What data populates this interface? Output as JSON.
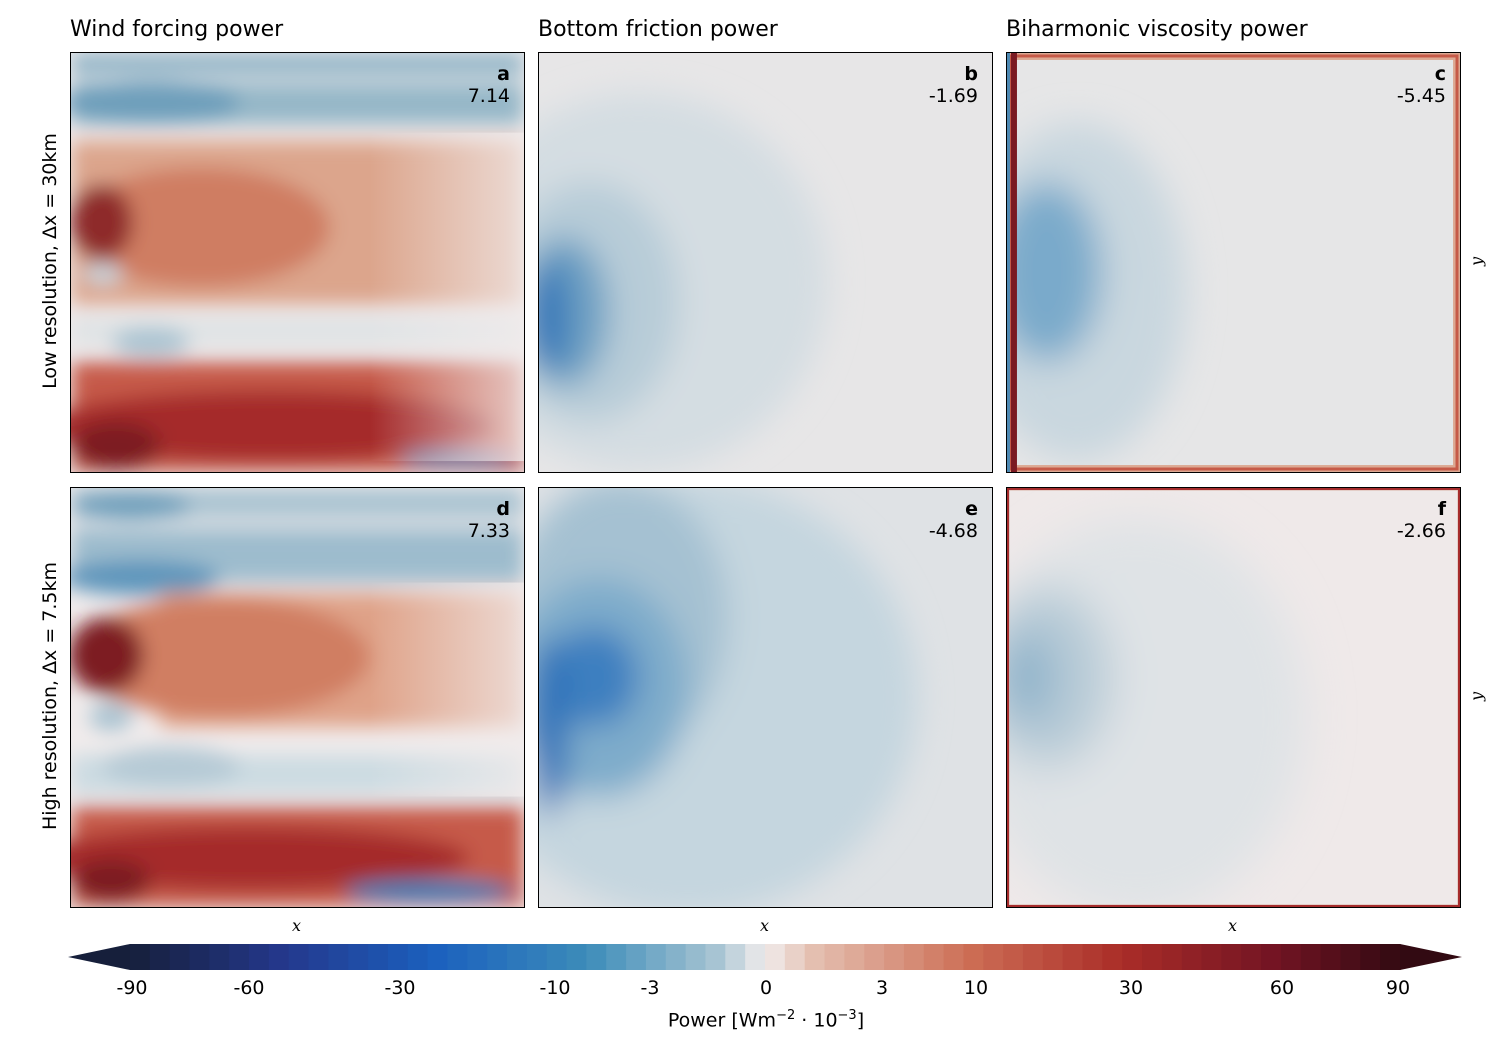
{
  "chart_data": {
    "type": "heatmap",
    "columns": [
      "Wind forcing power",
      "Bottom friction power",
      "Biharmonic viscosity power"
    ],
    "rows": [
      "Low resolution, Δx = 30km",
      "High resolution, Δx = 7.5km"
    ],
    "xlabel": "x",
    "ylabel": "y",
    "panels": [
      {
        "id": "a",
        "row": 0,
        "col": 0,
        "title": "Wind forcing power",
        "value": "7.14"
      },
      {
        "id": "b",
        "row": 0,
        "col": 1,
        "title": "Bottom friction power",
        "value": "-1.69"
      },
      {
        "id": "c",
        "row": 0,
        "col": 2,
        "title": "Biharmonic viscosity power",
        "value": "-5.45"
      },
      {
        "id": "d",
        "row": 1,
        "col": 0,
        "title": "Wind forcing power",
        "value": "7.33"
      },
      {
        "id": "e",
        "row": 1,
        "col": 1,
        "title": "Bottom friction power",
        "value": "-4.68"
      },
      {
        "id": "f",
        "row": 1,
        "col": 2,
        "title": "Biharmonic viscosity power",
        "value": "-2.66"
      }
    ],
    "colorbar": {
      "label_text": "Power [Wm",
      "label_exp1": "−2",
      "label_mid": " · 10",
      "label_exp2": "−3",
      "label_end": "]",
      "ticks": [
        "-90",
        "-60",
        "-30",
        "-10",
        "-3",
        "0",
        "3",
        "10",
        "30",
        "60",
        "90"
      ],
      "range": [
        -90,
        90
      ],
      "extend": "both",
      "colormap": "diverging blue-white-red (balance)"
    }
  },
  "colors": {
    "negative": "#1a5fb4",
    "neutral": "#f1ecec",
    "positive": "#a3202a"
  }
}
